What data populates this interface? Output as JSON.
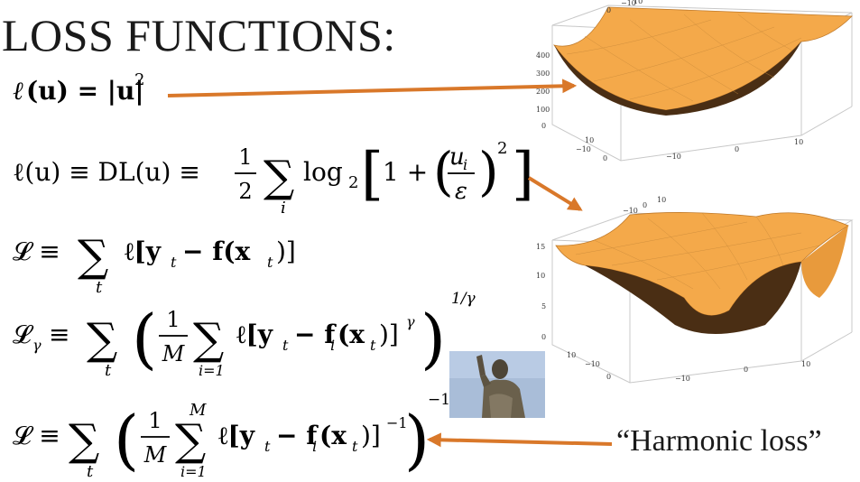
{
  "slide": {
    "title": "LOSS FUNCTIONS:",
    "caption": "“Harmonic loss”",
    "accent_color": "#d9782a",
    "surface_color": "#f3a84a",
    "equations": [
      {
        "id": "eq1",
        "tokens": {
          "ell": "ℓ",
          "arg": "(u) = |u|",
          "exp": "2"
        }
      },
      {
        "id": "eq2",
        "tokens": {
          "lhs": "ℓ(u) ≡ DL(u) ≡",
          "half_num": "1",
          "half_den": "2",
          "sum": "∑",
          "sum_sub": "i",
          "log": "log",
          "log_sub": "2",
          "one_plus": "1 +",
          "frac_num": "u",
          "frac_num_sub": "i",
          "frac_den": "ε",
          "exp": "2"
        }
      },
      {
        "id": "eq3",
        "tokens": {
          "lhs": "𝓛 ≡",
          "sum": "∑",
          "sum_sub": "t",
          "body": "ℓ[y",
          "y_sub": "t",
          "minus": "− f(x",
          "x_sub": "t",
          "close": ")]"
        }
      },
      {
        "id": "eq4",
        "tokens": {
          "lhs": "𝓛",
          "lhs_sub": "γ",
          "equiv": "≡",
          "sum": "∑",
          "sum_sub": "t",
          "num": "1",
          "den": "M",
          "isum": "∑",
          "isum_sub": "i=1",
          "body": "ℓ[y",
          "y_sub": "t",
          "minus": "− f",
          "f_sub": "i",
          "paren": "(x",
          "x_sub": "t",
          "close": ")]",
          "inner_exp": "γ",
          "outer_exp": "1/γ"
        }
      },
      {
        "id": "eq5",
        "tokens": {
          "lhs": "𝓛 ≡",
          "sum": "∑",
          "sum_sub": "t",
          "num": "1",
          "den": "M",
          "isum": "∑",
          "isum_top": "M",
          "isum_sub": "i=1",
          "body": "ℓ[y",
          "y_sub": "t",
          "minus": "− f",
          "f_sub": "i",
          "paren": "(x",
          "x_sub": "t",
          "close": ")]",
          "inner_exp": "−1",
          "outer_exp": "−1"
        }
      }
    ],
    "plots": [
      {
        "id": "quadratic-surface-plot",
        "z_ticks": [
          "400",
          "300",
          "200",
          "100",
          "0"
        ],
        "x_ticks": [
          "−10",
          "0",
          "10"
        ],
        "y_ticks": [
          "−10",
          "0",
          "10"
        ],
        "back_ticks": [
          "−10",
          "0",
          "10"
        ]
      },
      {
        "id": "dl-surface-plot",
        "z_ticks": [
          "15",
          "10",
          "5",
          "0"
        ],
        "x_ticks": [
          "−10",
          "0",
          "10"
        ],
        "y_ticks": [
          "−10",
          "0",
          "10"
        ],
        "back_ticks": [
          "−10",
          "0",
          "10"
        ]
      }
    ]
  }
}
